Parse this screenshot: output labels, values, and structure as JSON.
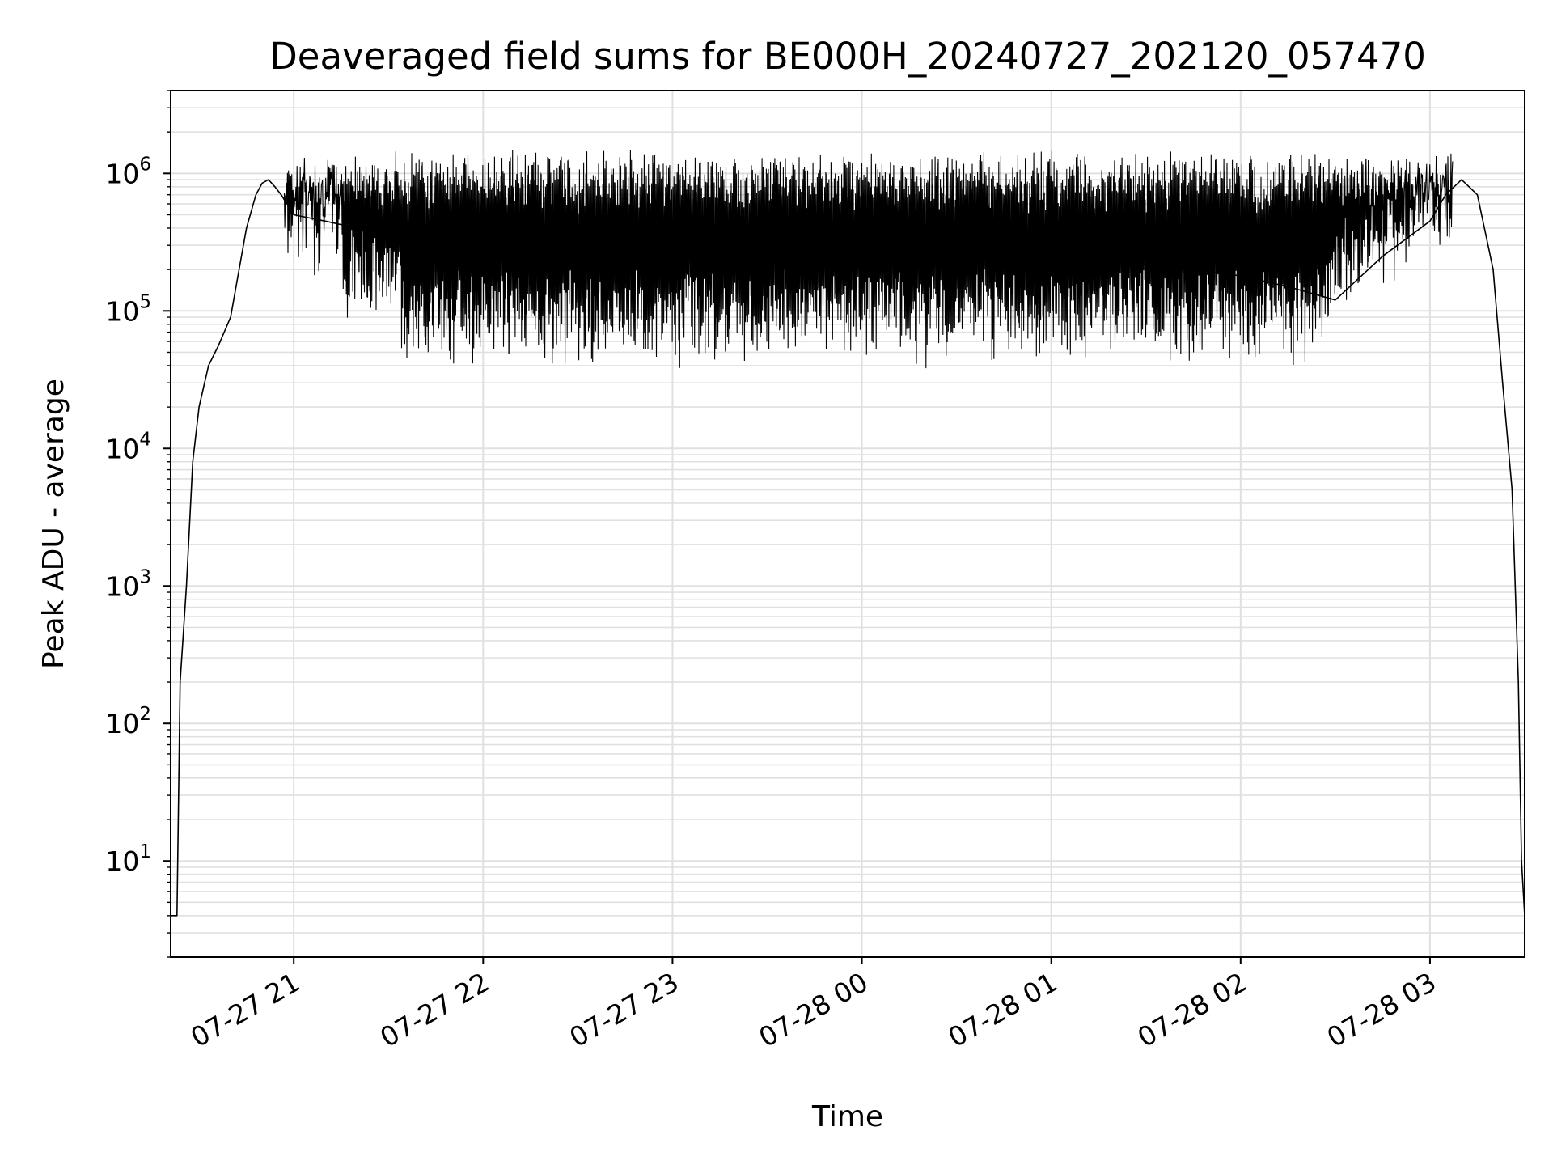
{
  "chart_data": {
    "type": "line",
    "title": "Deaveraged field sums for BE000H_20240727_202120_057470",
    "xlabel": "Time",
    "ylabel": "Peak ADU - average",
    "yscale": "log",
    "grid": true,
    "legend": "none",
    "colors": {
      "line": "#000000",
      "grid": "#e0e0e0",
      "axes": "#000000"
    },
    "xlim": [
      "2024-07-27 20:21",
      "2024-07-28 03:30"
    ],
    "ylim": [
      2,
      4000000
    ],
    "x_ticks": [
      {
        "t": "2024-07-27 21:00",
        "label": "07-27 21"
      },
      {
        "t": "2024-07-27 22:00",
        "label": "07-27 22"
      },
      {
        "t": "2024-07-27 23:00",
        "label": "07-27 23"
      },
      {
        "t": "2024-07-28 00:00",
        "label": "07-28 00"
      },
      {
        "t": "2024-07-28 01:00",
        "label": "07-28 01"
      },
      {
        "t": "2024-07-28 02:00",
        "label": "07-28 02"
      },
      {
        "t": "2024-07-28 03:00",
        "label": "07-28 03"
      }
    ],
    "y_ticks": [
      {
        "value": 10,
        "base": "10",
        "exp": "1"
      },
      {
        "value": 100,
        "base": "10",
        "exp": "2"
      },
      {
        "value": 1000,
        "base": "10",
        "exp": "3"
      },
      {
        "value": 10000,
        "base": "10",
        "exp": "4"
      },
      {
        "value": 100000,
        "base": "10",
        "exp": "5"
      },
      {
        "value": 1000000,
        "base": "10",
        "exp": "6"
      }
    ],
    "series": [
      {
        "name": "",
        "x": [
          "2024-07-27 20:21",
          "2024-07-27 20:22",
          "2024-07-27 20:23",
          "2024-07-27 20:24",
          "2024-07-27 20:26",
          "2024-07-27 20:28",
          "2024-07-27 20:30",
          "2024-07-27 20:33",
          "2024-07-27 20:36",
          "2024-07-27 20:40",
          "2024-07-27 20:45",
          "2024-07-27 20:48",
          "2024-07-27 20:50",
          "2024-07-27 20:52",
          "2024-07-27 20:54",
          "2024-07-27 20:56",
          "2024-07-27 21:00",
          "2024-07-27 21:10",
          "2024-07-27 21:20",
          "2024-07-27 21:30",
          "2024-07-27 21:40",
          "2024-07-27 21:50",
          "2024-07-27 22:00",
          "2024-07-27 22:15",
          "2024-07-27 22:30",
          "2024-07-27 22:45",
          "2024-07-27 23:00",
          "2024-07-27 23:30",
          "2024-07-28 00:00",
          "2024-07-28 00:30",
          "2024-07-28 01:00",
          "2024-07-28 01:30",
          "2024-07-28 02:00",
          "2024-07-28 02:15",
          "2024-07-28 02:30",
          "2024-07-28 02:45",
          "2024-07-28 03:00",
          "2024-07-28 03:05",
          "2024-07-28 03:10",
          "2024-07-28 03:15",
          "2024-07-28 03:20",
          "2024-07-28 03:23",
          "2024-07-28 03:26",
          "2024-07-28 03:28",
          "2024-07-28 03:29",
          "2024-07-28 03:30"
        ],
        "y": [
          4,
          4,
          4,
          200,
          1000,
          8000,
          20000,
          40000,
          55000,
          90000,
          400000,
          700000,
          850000,
          900000,
          800000,
          700000,
          500000,
          450000,
          400000,
          350000,
          300000,
          280000,
          250000,
          300000,
          320000,
          300000,
          300000,
          280000,
          260000,
          250000,
          240000,
          220000,
          180000,
          150000,
          120000,
          250000,
          450000,
          700000,
          900000,
          700000,
          200000,
          30000,
          5000,
          200,
          10,
          4
        ]
      }
    ]
  }
}
